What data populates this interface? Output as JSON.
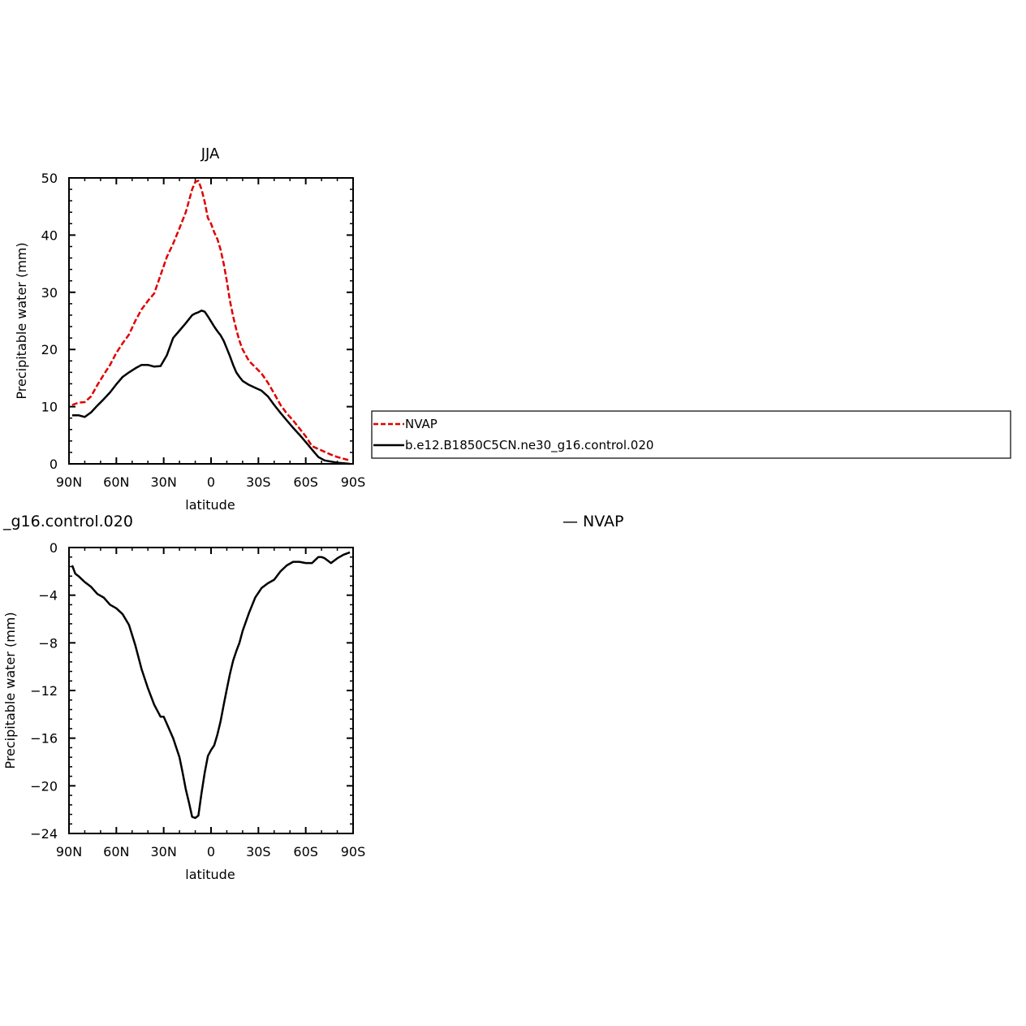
{
  "chart_data": [
    {
      "type": "line",
      "title": "JJA",
      "xlabel": "latitude",
      "ylabel": "Precipitable water (mm)",
      "xlim": [
        -90,
        90
      ],
      "ylim": [
        0,
        50
      ],
      "x_ticks": [
        {
          "value": -90,
          "label": "90N"
        },
        {
          "value": -60,
          "label": "60N"
        },
        {
          "value": -30,
          "label": "30N"
        },
        {
          "value": 0,
          "label": "0"
        },
        {
          "value": 30,
          "label": "30S"
        },
        {
          "value": 60,
          "label": "60S"
        },
        {
          "value": 90,
          "label": "90S"
        }
      ],
      "y_ticks": [
        0,
        10,
        20,
        30,
        40,
        50
      ],
      "legend": {
        "placement": "right of plot",
        "boxed": true
      },
      "series": [
        {
          "name": "NVAP",
          "color": "#e00000",
          "dash": "dashed",
          "x": [
            -88,
            -84,
            -80,
            -76,
            -72,
            -68,
            -64,
            -60,
            -56,
            -52,
            -48,
            -44,
            -40,
            -36,
            -32,
            -28,
            -24,
            -20,
            -16,
            -12,
            -10,
            -8,
            -6,
            -4,
            -2,
            0,
            2,
            4,
            6,
            8,
            10,
            12,
            14,
            16,
            18,
            20,
            24,
            28,
            32,
            36,
            40,
            44,
            48,
            52,
            56,
            60,
            64,
            68,
            72,
            76,
            80,
            84,
            88
          ],
          "y": [
            10.3,
            10.7,
            10.8,
            11.8,
            13.8,
            15.6,
            17.3,
            19.4,
            21.1,
            22.6,
            25,
            27,
            28.5,
            29.8,
            33,
            36.2,
            38.5,
            41.2,
            44,
            48,
            49.3,
            49.5,
            48,
            45.8,
            43,
            42,
            40.5,
            39.3,
            37.5,
            35,
            32,
            28.5,
            25.8,
            23.5,
            21.5,
            20,
            18,
            16.9,
            15.8,
            14.2,
            12.3,
            10.3,
            8.8,
            7.6,
            6.2,
            4.8,
            3.1,
            2.6,
            2.1,
            1.6,
            1.2,
            0.9,
            0.6
          ]
        },
        {
          "name": "b.e12.B1850C5CN.ne30_g16.control.020",
          "color": "#000000",
          "dash": "solid",
          "x": [
            -88,
            -84,
            -80,
            -76,
            -72,
            -68,
            -64,
            -60,
            -56,
            -52,
            -48,
            -44,
            -40,
            -36,
            -32,
            -28,
            -24,
            -20,
            -16,
            -12,
            -10,
            -8,
            -6,
            -4,
            -2,
            0,
            2,
            4,
            6,
            8,
            10,
            12,
            14,
            16,
            18,
            20,
            24,
            28,
            32,
            36,
            40,
            44,
            48,
            52,
            56,
            60,
            64,
            68,
            72,
            76,
            80,
            84,
            88
          ],
          "y": [
            8.5,
            8.5,
            8.2,
            9,
            10.2,
            11.3,
            12.5,
            13.9,
            15.2,
            16,
            16.7,
            17.3,
            17.3,
            17,
            17.1,
            19,
            22,
            23.3,
            24.6,
            26,
            26.3,
            26.5,
            26.8,
            26.6,
            25.8,
            24.9,
            24,
            23.2,
            22.5,
            21.5,
            20.2,
            18.8,
            17.3,
            16,
            15.2,
            14.5,
            13.8,
            13.3,
            12.8,
            11.8,
            10.3,
            8.9,
            7.6,
            6.3,
            5.1,
            3.8,
            2.5,
            1.2,
            0.6,
            0.4,
            0.2,
            0.1,
            0
          ]
        }
      ]
    },
    {
      "type": "line",
      "title": "_g16.control.020",
      "title_right": "— NVAP",
      "xlabel": "latitude",
      "ylabel": "Precipitable water (mm)",
      "xlim": [
        -90,
        90
      ],
      "ylim": [
        -24,
        0
      ],
      "x_ticks": [
        {
          "value": -90,
          "label": "90N"
        },
        {
          "value": -60,
          "label": "60N"
        },
        {
          "value": -30,
          "label": "30N"
        },
        {
          "value": 0,
          "label": "0"
        },
        {
          "value": 30,
          "label": "30S"
        },
        {
          "value": 60,
          "label": "60S"
        },
        {
          "value": 90,
          "label": "90S"
        }
      ],
      "y_ticks": [
        0,
        -4,
        -8,
        -12,
        -16,
        -20,
        -24
      ],
      "series": [
        {
          "color": "#000000",
          "dash": "solid",
          "x": [
            -88,
            -86,
            -84,
            -80,
            -76,
            -72,
            -68,
            -64,
            -60,
            -56,
            -52,
            -48,
            -44,
            -40,
            -36,
            -32,
            -30,
            -28,
            -24,
            -20,
            -18,
            -16,
            -14,
            -12,
            -10,
            -8,
            -6,
            -4,
            -2,
            0,
            2,
            4,
            6,
            8,
            10,
            12,
            14,
            16,
            18,
            20,
            24,
            28,
            32,
            36,
            40,
            44,
            48,
            52,
            56,
            60,
            64,
            68,
            70,
            72,
            76,
            80,
            84,
            88
          ],
          "y": [
            -1.5,
            -2.2,
            -2.4,
            -2.9,
            -3.3,
            -3.9,
            -4.2,
            -4.8,
            -5.1,
            -5.6,
            -6.5,
            -8.2,
            -10.2,
            -11.8,
            -13.2,
            -14.2,
            -14.2,
            -14.8,
            -16,
            -17.6,
            -18.9,
            -20.3,
            -21.4,
            -22.6,
            -22.7,
            -22.5,
            -20.6,
            -18.9,
            -17.5,
            -17.0,
            -16.6,
            -15.7,
            -14.6,
            -13.2,
            -11.9,
            -10.6,
            -9.5,
            -8.7,
            -8.0,
            -7.0,
            -5.5,
            -4.2,
            -3.4,
            -3.0,
            -2.7,
            -2.0,
            -1.5,
            -1.2,
            -1.2,
            -1.3,
            -1.3,
            -0.8,
            -0.8,
            -0.9,
            -1.3,
            -0.9,
            -0.6,
            -0.4
          ]
        }
      ]
    }
  ]
}
